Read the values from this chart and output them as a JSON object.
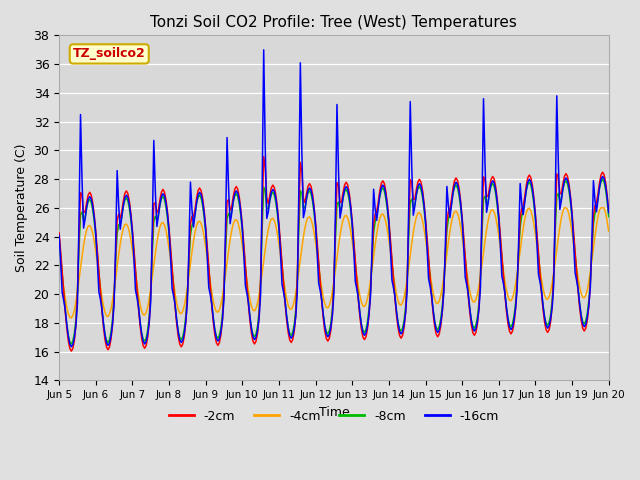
{
  "title": "Tonzi Soil CO2 Profile: Tree (West) Temperatures",
  "xlabel": "Time",
  "ylabel": "Soil Temperature (C)",
  "ylim": [
    14,
    38
  ],
  "xlim": [
    0,
    360
  ],
  "background_color": "#e0e0e0",
  "plot_bg_color": "#d8d8d8",
  "legend_label": "TZ_soilco2",
  "legend_box_color": "#ffffcc",
  "legend_box_edge": "#ccaa00",
  "series_colors": [
    "#ff0000",
    "#ffa500",
    "#00bb00",
    "#0000ff"
  ],
  "series_labels": [
    "-2cm",
    "-4cm",
    "-8cm",
    "-16cm"
  ],
  "xtick_labels": [
    "Jun 5",
    "Jun 6",
    "Jun 7",
    "Jun 8",
    "Jun 9",
    "Jun 10",
    "Jun 11",
    "Jun 12",
    "Jun 13",
    "Jun 14",
    "Jun 15",
    "Jun 16",
    "Jun 17",
    "Jun 18",
    "Jun 19",
    "Jun 20"
  ],
  "xtick_positions": [
    0,
    24,
    48,
    72,
    96,
    120,
    144,
    168,
    192,
    216,
    240,
    264,
    288,
    312,
    336,
    360
  ]
}
